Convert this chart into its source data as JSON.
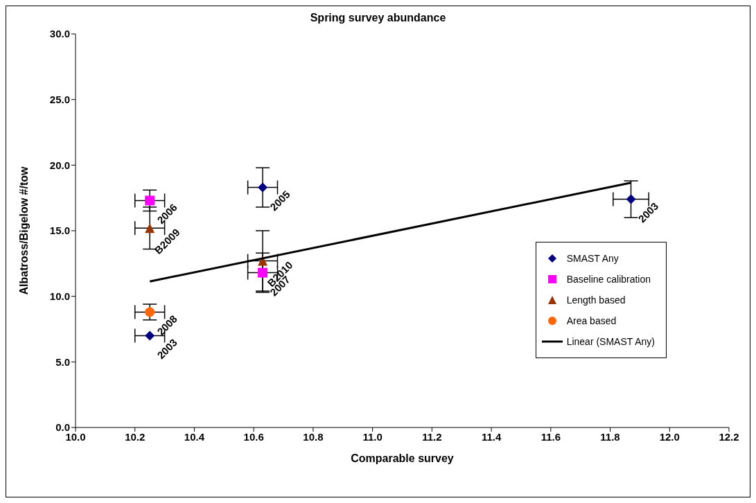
{
  "chart_data": {
    "type": "scatter",
    "title": "Spring survey abundance",
    "xlabel": "Comparable survey",
    "ylabel": "Albatross/Bigelow #/tow",
    "series": [
      {
        "name": "SMAST Any",
        "marker": "diamond",
        "color": "#000080",
        "x": [
          10.25,
          10.63,
          11.87
        ],
        "values": [
          7.0,
          18.3,
          17.4
        ],
        "errors": [
          null,
          1.5,
          1.4
        ],
        "xerrors": [
          0.05,
          0.05,
          0.06
        ]
      },
      {
        "name": "Baseline calibration",
        "marker": "square",
        "color": "#ff00ff",
        "x": [
          10.25,
          10.63
        ],
        "values": [
          17.3,
          11.8
        ],
        "errors": [
          0.8,
          1.5
        ],
        "xerrors": [
          0.05,
          0.05
        ]
      },
      {
        "name": "Length based",
        "marker": "triangle",
        "color": "#993300",
        "x": [
          10.25,
          10.63
        ],
        "values": [
          15.2,
          12.7
        ],
        "errors": [
          1.6,
          2.3
        ],
        "xerrors": [
          0.05,
          0.05
        ]
      },
      {
        "name": "Area based",
        "marker": "circle",
        "color": "#ff6600",
        "x": [
          10.25
        ],
        "values": [
          8.8
        ],
        "errors": [
          0.6
        ],
        "xerrors": [
          0.05
        ]
      },
      {
        "name": "Linear (SMAST Any)",
        "type": "line",
        "marker": "none",
        "line_style": "solid",
        "color": "#000000",
        "x": [
          10.25,
          11.87
        ],
        "values": [
          11.13,
          18.66
        ]
      }
    ],
    "annotations": [
      {
        "text": "2003",
        "x": 10.25,
        "y": 7.0
      },
      {
        "text": "2005",
        "x": 10.63,
        "y": 18.3
      },
      {
        "text": "2003",
        "x": 11.87,
        "y": 17.4
      },
      {
        "text": "2006",
        "x": 10.25,
        "y": 17.3
      },
      {
        "text": "2007",
        "x": 10.63,
        "y": 11.8
      },
      {
        "text": "B2009",
        "x": 10.25,
        "y": 15.2
      },
      {
        "text": "B2010",
        "x": 10.63,
        "y": 12.7
      },
      {
        "text": "2008",
        "x": 10.25,
        "y": 8.8
      }
    ],
    "xlim": [
      10.0,
      12.2
    ],
    "xticks": [
      {
        "value": 10.0,
        "label": "10.0"
      },
      {
        "value": 10.2,
        "label": "10.2"
      },
      {
        "value": 10.4,
        "label": "10.4"
      },
      {
        "value": 10.6,
        "label": "10.6"
      },
      {
        "value": 10.8,
        "label": "10.8"
      },
      {
        "value": 11.0,
        "label": "11.0"
      },
      {
        "value": 11.2,
        "label": "11.2"
      },
      {
        "value": 11.4,
        "label": "11.4"
      },
      {
        "value": 11.6,
        "label": "11.6"
      },
      {
        "value": 11.8,
        "label": "11.8"
      },
      {
        "value": 12.0,
        "label": "12.0"
      },
      {
        "value": 12.2,
        "label": "12.2"
      }
    ],
    "ylim": [
      0.0,
      30.0
    ],
    "yticks": [
      {
        "value": 0,
        "label": "0.0"
      },
      {
        "value": 5,
        "label": "5.0"
      },
      {
        "value": 10,
        "label": "10.0"
      },
      {
        "value": 15,
        "label": "15.0"
      },
      {
        "value": 20,
        "label": "20.0"
      },
      {
        "value": 25,
        "label": "25.0"
      },
      {
        "value": 30,
        "label": "30.0"
      }
    ],
    "grid": false,
    "legend": "right"
  }
}
